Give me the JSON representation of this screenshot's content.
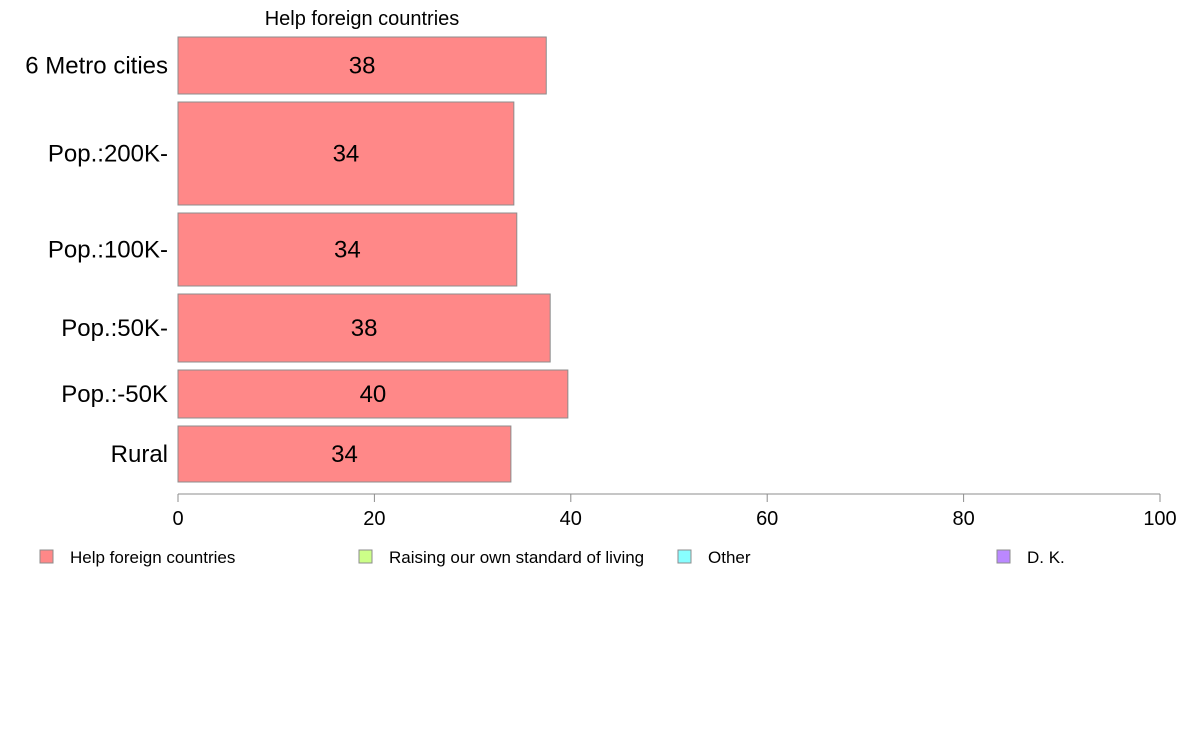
{
  "chart_data": {
    "type": "bar",
    "orientation": "horizontal",
    "title": "Help foreign countries",
    "categories": [
      "6 Metro cities",
      "Pop.:200K-",
      "Pop.:100K-",
      "Pop.:50K-",
      "Pop.:-50K",
      "Rural"
    ],
    "series": [
      {
        "name": "Help foreign countries",
        "values": [
          37.5,
          34.2,
          34.5,
          37.9,
          39.7,
          33.9
        ],
        "labels": [
          "38",
          "34",
          "34",
          "38",
          "40",
          "34"
        ],
        "color": "#ff8888"
      }
    ],
    "xlim": [
      0,
      100
    ],
    "xticks": [
      "0",
      "20",
      "40",
      "60",
      "80",
      "100"
    ],
    "grid": false,
    "legend": {
      "placement": "bottom",
      "items": [
        {
          "label": "Help foreign countries",
          "color": "#ff8888"
        },
        {
          "label": "Raising our own standard of living",
          "color": "#ccff88"
        },
        {
          "label": "Other",
          "color": "#88ffff"
        },
        {
          "label": "D. K.",
          "color": "#bb88ff"
        }
      ]
    }
  }
}
